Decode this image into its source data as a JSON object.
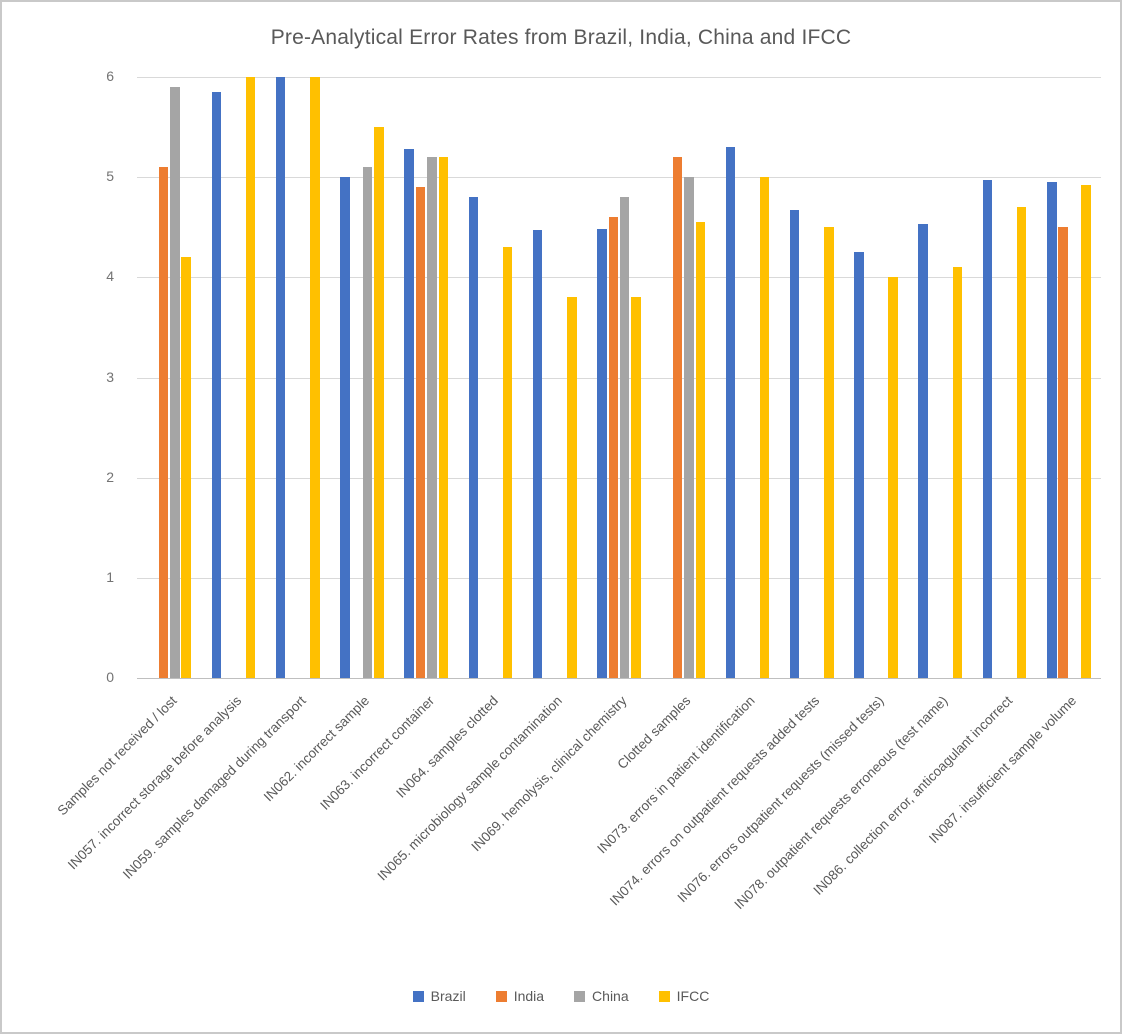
{
  "window": {
    "background": "#ffffff",
    "border_color": "#c9c9c9"
  },
  "colors": {
    "gridline": "#d9d9d9",
    "axis_line": "#bfbfbf",
    "title_text": "#595959",
    "tick_label_text": "#737373",
    "category_label_text": "#595959",
    "legend_text": "#595959"
  },
  "chart_data": {
    "type": "bar",
    "title": "Pre-Analytical Error Rates from Brazil, India, China and IFCC",
    "xlabel": "",
    "ylabel": "",
    "ylim": [
      0,
      6
    ],
    "yticks": [
      0,
      1,
      2,
      3,
      4,
      5,
      6
    ],
    "grid": true,
    "legend_position": "bottom",
    "categories": [
      "Samples not received / lost",
      "IN057. incorrect storage before analysis",
      "IN059. samples damaged during transport",
      "IN062. incorrect sample",
      "IN063. incorrect container",
      "IN064. samples clotted",
      "IN065. microbiology sample contamination",
      "IN069. hemolysis, clinical chemistry",
      "Clotted samples",
      "IN073. errors in patient identification",
      "IN074. errors on outpatient requests added tests",
      "IN076. errors outpatient requests (missed tests)",
      "IN078. outpatient requests erroneous (test name)",
      "IN086. collection error, anticoagulant incorrect",
      "IN087. insufficient sample volume"
    ],
    "series": [
      {
        "name": "Brazil",
        "color": "#4472C4",
        "values": [
          null,
          5.85,
          6.0,
          5.0,
          5.28,
          4.8,
          4.47,
          4.48,
          null,
          5.3,
          4.67,
          4.25,
          4.53,
          4.97,
          4.95
        ]
      },
      {
        "name": "India",
        "color": "#ED7D31",
        "values": [
          5.1,
          null,
          null,
          null,
          4.9,
          null,
          null,
          4.6,
          5.2,
          null,
          null,
          null,
          null,
          null,
          4.5
        ]
      },
      {
        "name": "China",
        "color": "#A5A5A5",
        "values": [
          5.9,
          null,
          null,
          5.1,
          5.2,
          null,
          null,
          4.8,
          5.0,
          null,
          null,
          null,
          null,
          null,
          null
        ]
      },
      {
        "name": "IFCC",
        "color": "#FFC000",
        "values": [
          4.2,
          6.0,
          6.0,
          5.5,
          5.2,
          4.3,
          3.8,
          3.8,
          4.55,
          5.0,
          4.5,
          4.0,
          4.1,
          4.7,
          4.92
        ]
      }
    ]
  }
}
